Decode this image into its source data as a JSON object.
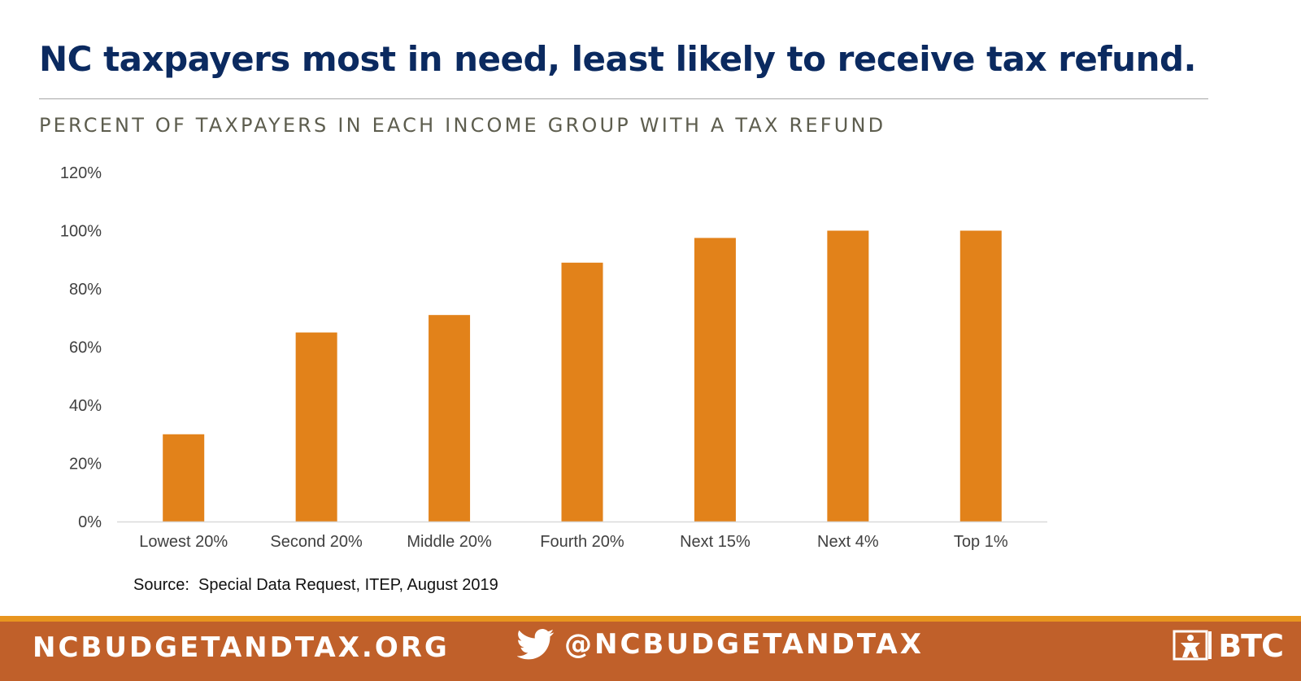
{
  "header": {
    "title": "NC taxpayers most in need, least likely to receive tax refund.",
    "subtitle": "PERCENT OF TAXPAYERS IN EACH INCOME GROUP WITH A TAX REFUND"
  },
  "chart_data": {
    "type": "bar",
    "categories": [
      "Lowest 20%",
      "Second 20%",
      "Middle 20%",
      "Fourth 20%",
      "Next 15%",
      "Next 4%",
      "Top 1%"
    ],
    "values": [
      30,
      65,
      71,
      89,
      97.5,
      100,
      100
    ],
    "ylim": [
      0,
      120
    ],
    "yticks": [
      0,
      20,
      40,
      60,
      80,
      100,
      120
    ],
    "ytick_labels": [
      "0%",
      "20%",
      "40%",
      "60%",
      "80%",
      "100%",
      "120%"
    ],
    "grid": false,
    "bar_color": "#e2821a",
    "xlabel": "",
    "ylabel": ""
  },
  "source": "Source:  Special Data Request, ITEP, August 2019",
  "footer": {
    "website": "NCBUDGETANDTAX.ORG",
    "twitter_handle": "@NCBUDGETANDTAX",
    "twitter_icon": "twitter-bird-icon",
    "logo_text": "BTC",
    "bar_color": "#c0602a",
    "stripe_color": "#e8951f"
  },
  "colors": {
    "title": "#0b2a60",
    "subtitle": "#5d5d4e",
    "bars": "#e2821a"
  }
}
